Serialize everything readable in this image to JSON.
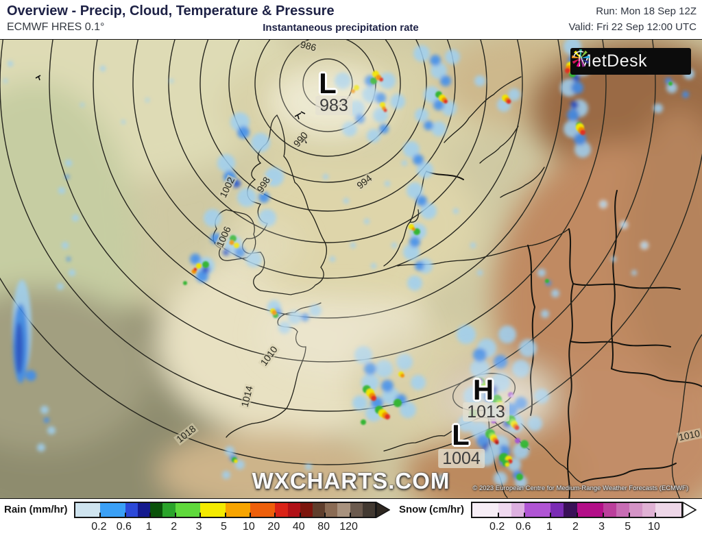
{
  "header": {
    "title": "Overview - Precip, Cloud, Temperature & Pressure",
    "model": "ECMWF HRES 0.1°",
    "subtitle": "Instantaneous precipitation rate",
    "run": "Run: Mon 18 Sep 12Z",
    "valid": "Valid: Fri 22 Sep 12:00 UTC"
  },
  "map": {
    "watermark": "WXCHARTS.COM",
    "copyright": "© 2023 European Centre for Medium-Range Weather Forecasts (ECMWF)",
    "logo_text": "MetDesk",
    "pressure_centers": [
      {
        "letter": "L",
        "value": "983"
      },
      {
        "letter": "H",
        "value": "1013"
      },
      {
        "letter": "L",
        "value": "1004"
      }
    ],
    "isobar_labels": [
      "986",
      "990",
      "994",
      "998",
      "1002",
      "1006",
      "1010",
      "1014",
      "1018",
      "1010"
    ]
  },
  "legend": {
    "rain": {
      "label": "Rain (mm/hr)",
      "ticks": [
        "0.2",
        "0.6",
        "1",
        "2",
        "3",
        "5",
        "10",
        "20",
        "40",
        "80",
        "120"
      ],
      "segments": [
        {
          "color": "#cfe4ef",
          "w": 1
        },
        {
          "color": "#3aa0f6",
          "w": 1
        },
        {
          "color": "#2c49d8",
          "w": 0.5
        },
        {
          "color": "#141a8e",
          "w": 0.5
        },
        {
          "color": "#0a520a",
          "w": 0.5
        },
        {
          "color": "#2aa42a",
          "w": 0.5
        },
        {
          "color": "#5fd93c",
          "w": 1
        },
        {
          "color": "#f4ea00",
          "w": 1
        },
        {
          "color": "#f7a400",
          "w": 1
        },
        {
          "color": "#ee5f0b",
          "w": 1
        },
        {
          "color": "#da2317",
          "w": 0.5
        },
        {
          "color": "#b11117",
          "w": 0.5
        },
        {
          "color": "#7c150c",
          "w": 0.5
        },
        {
          "color": "#5f3e2c",
          "w": 0.5
        },
        {
          "color": "#8a6b54",
          "w": 0.5
        },
        {
          "color": "#a8927e",
          "w": 0.5
        },
        {
          "color": "#6b5a4e",
          "w": 0.5
        },
        {
          "color": "#423931",
          "w": 0.5
        }
      ],
      "arrow_color": "#2e2720",
      "arrow_stroke": "#161616"
    },
    "snow": {
      "label": "Snow (cm/hr)",
      "ticks": [
        "0.2",
        "0.6",
        "1",
        "2",
        "3",
        "5",
        "10"
      ],
      "segments": [
        {
          "color": "#f7eef6",
          "w": 1
        },
        {
          "color": "#efd9ef",
          "w": 0.5
        },
        {
          "color": "#ddb0e0",
          "w": 0.5
        },
        {
          "color": "#b055d4",
          "w": 1
        },
        {
          "color": "#7a2cb4",
          "w": 0.5
        },
        {
          "color": "#3a1058",
          "w": 0.5
        },
        {
          "color": "#b30e88",
          "w": 1
        },
        {
          "color": "#bb3f9c",
          "w": 0.5
        },
        {
          "color": "#c86db4",
          "w": 0.5
        },
        {
          "color": "#d494c6",
          "w": 0.5
        },
        {
          "color": "#e0b2d4",
          "w": 0.5
        },
        {
          "color": "#eed7e8",
          "w": 1
        }
      ],
      "arrow_color": "#ffffff",
      "arrow_stroke": "#161616"
    }
  }
}
